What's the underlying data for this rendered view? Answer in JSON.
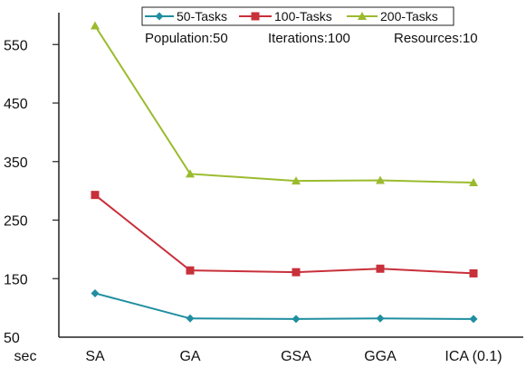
{
  "chart_data": {
    "type": "line",
    "categories": [
      "SA",
      "GA",
      "GSA",
      "GGA",
      "ICA (0.1)"
    ],
    "series": [
      {
        "name": "50-Tasks",
        "color": "#1f8ea0",
        "marker": "diamond",
        "values": [
          125,
          82,
          81,
          82,
          81
        ]
      },
      {
        "name": "100-Tasks",
        "color": "#c8303a",
        "marker": "square",
        "values": [
          293,
          164,
          161,
          167,
          159
        ]
      },
      {
        "name": "200-Tasks",
        "color": "#9bbb2e",
        "marker": "triangle",
        "values": [
          582,
          329,
          317,
          318,
          314
        ]
      }
    ],
    "ylim": [
      50,
      600
    ],
    "yticks": [
      "50",
      "150",
      "250",
      "350",
      "450",
      "550"
    ],
    "yticks_values": [
      50,
      150,
      250,
      350,
      450,
      550
    ],
    "ylabel": "sec",
    "grid": false,
    "legend_position": "top",
    "annotations": [
      "Population:50",
      "Iterations:100",
      "Resources:10"
    ]
  }
}
